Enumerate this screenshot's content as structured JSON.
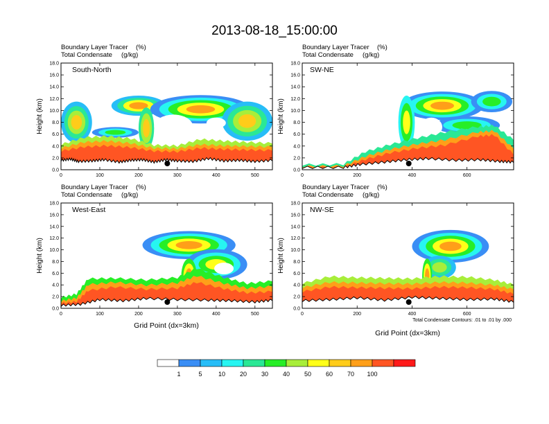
{
  "page_title": "2013-08-18_15:00:00",
  "colors": {
    "levels": [
      "#ffffff",
      "#3a8ef5",
      "#27bdf7",
      "#27f5f1",
      "#2ae895",
      "#27ee27",
      "#a8ee3a",
      "#ffff19",
      "#ffcc1a",
      "#ff9f19",
      "#ff5523",
      "#ff1a1a"
    ],
    "terrain": "#000000",
    "marker": "#000000"
  },
  "chart_data": [
    {
      "type": "heatmap",
      "panel": "South-North",
      "header_left": [
        "Boundary Layer Tracer",
        "Total Condensate"
      ],
      "header_units": [
        "(%)",
        "(g/kg)"
      ],
      "ylabel": "Height (km)",
      "xlabel": "",
      "x_ticks": [
        0,
        100,
        200,
        300,
        400,
        500
      ],
      "y_ticks": [
        "0.0",
        "2.0",
        "4.0",
        "6.0",
        "8.0",
        "10.0",
        "12.0",
        "14.0",
        "16.0",
        "18.0"
      ],
      "xlim": [
        0,
        545
      ],
      "ylim": [
        0,
        18
      ],
      "marker_x": 274,
      "terrain": [
        [
          0,
          1.5
        ],
        [
          25,
          1.7
        ],
        [
          45,
          1.3
        ],
        [
          80,
          1.4
        ],
        [
          110,
          1.6
        ],
        [
          150,
          1.2
        ],
        [
          180,
          1.5
        ],
        [
          210,
          1.6
        ],
        [
          240,
          1.2
        ],
        [
          270,
          1.6
        ],
        [
          300,
          1.4
        ],
        [
          340,
          1.3
        ],
        [
          380,
          1.8
        ],
        [
          420,
          1.4
        ],
        [
          460,
          1.5
        ],
        [
          500,
          1.3
        ],
        [
          545,
          1.5
        ]
      ],
      "bands": [
        {
          "x0": 0,
          "x1": 545,
          "top": [
            [
              0,
              4.2
            ],
            [
              60,
              5.4
            ],
            [
              120,
              5.6
            ],
            [
              180,
              5.2
            ],
            [
              240,
              4.1
            ],
            [
              300,
              4.0
            ],
            [
              360,
              5.1
            ],
            [
              420,
              4.8
            ],
            [
              480,
              4.6
            ],
            [
              545,
              4.4
            ]
          ],
          "level": 6
        },
        {
          "x0": 0,
          "x1": 545,
          "top": [
            [
              0,
              3.6
            ],
            [
              60,
              4.6
            ],
            [
              120,
              4.8
            ],
            [
              180,
              4.4
            ],
            [
              240,
              3.6
            ],
            [
              300,
              3.5
            ],
            [
              360,
              4.2
            ],
            [
              420,
              4.0
            ],
            [
              480,
              3.9
            ],
            [
              545,
              3.8
            ]
          ],
          "level": 9
        },
        {
          "x0": 0,
          "x1": 545,
          "top": [
            [
              0,
              3.1
            ],
            [
              60,
              3.8
            ],
            [
              120,
              4.0
            ],
            [
              180,
              3.7
            ],
            [
              240,
              3.1
            ],
            [
              300,
              3.0
            ],
            [
              360,
              3.6
            ],
            [
              420,
              3.4
            ],
            [
              480,
              3.3
            ],
            [
              545,
              3.2
            ]
          ],
          "level": 10
        }
      ],
      "clouds": [
        {
          "cx": 40,
          "cy": 8.0,
          "rx": 40,
          "ry": 3.5,
          "levels": [
            2,
            4,
            6,
            8
          ]
        },
        {
          "cx": 200,
          "cy": 10.8,
          "rx": 70,
          "ry": 1.7,
          "levels": [
            2,
            4,
            7,
            9
          ]
        },
        {
          "cx": 360,
          "cy": 10.2,
          "rx": 130,
          "ry": 2.4,
          "levels": [
            1,
            3,
            5,
            7,
            9
          ]
        },
        {
          "cx": 480,
          "cy": 8.2,
          "rx": 65,
          "ry": 3.3,
          "levels": [
            2,
            4,
            6,
            8
          ]
        },
        {
          "cx": 220,
          "cy": 7.0,
          "rx": 20,
          "ry": 3.5,
          "levels": [
            4,
            6,
            8
          ]
        },
        {
          "cx": 140,
          "cy": 6.3,
          "rx": 60,
          "ry": 0.9,
          "levels": [
            1,
            3,
            5
          ]
        }
      ],
      "holes": [
        {
          "cx": 290,
          "cy": 7.3,
          "rx": 50,
          "ry": 2.0
        },
        {
          "cx": 400,
          "cy": 7.9,
          "rx": 25,
          "ry": 0.9
        }
      ]
    },
    {
      "type": "heatmap",
      "panel": "SW-NE",
      "header_left": [
        "Boundary Layer Tracer",
        "Total Condensate"
      ],
      "header_units": [
        "(%)",
        "(g/kg)"
      ],
      "ylabel": "Height (km)",
      "xlabel": "",
      "x_ticks": [
        0,
        200,
        400,
        600
      ],
      "y_ticks": [
        "0.0",
        "2.0",
        "4.0",
        "6.0",
        "8.0",
        "10.0",
        "12.0",
        "14.0",
        "16.0",
        "18.0"
      ],
      "xlim": [
        0,
        770
      ],
      "ylim": [
        0,
        18
      ],
      "marker_x": 388,
      "terrain": [
        [
          0,
          0.3
        ],
        [
          150,
          0.3
        ],
        [
          210,
          0.8
        ],
        [
          300,
          1.2
        ],
        [
          380,
          1.6
        ],
        [
          460,
          1.8
        ],
        [
          560,
          1.5
        ],
        [
          650,
          1.6
        ],
        [
          720,
          1.3
        ],
        [
          770,
          1.2
        ]
      ],
      "bands": [
        {
          "x0": 0,
          "x1": 770,
          "top": [
            [
              0,
              0.8
            ],
            [
              150,
              0.9
            ],
            [
              230,
              3.0
            ],
            [
              320,
              4.2
            ],
            [
              420,
              5.3
            ],
            [
              520,
              6.3
            ],
            [
              640,
              7.2
            ],
            [
              700,
              7.4
            ],
            [
              770,
              5.0
            ]
          ],
          "level": 4
        },
        {
          "x0": 0,
          "x1": 770,
          "top": [
            [
              0,
              0.5
            ],
            [
              150,
              0.6
            ],
            [
              230,
              2.2
            ],
            [
              320,
              3.4
            ],
            [
              420,
              4.3
            ],
            [
              520,
              5.0
            ],
            [
              640,
              6.3
            ],
            [
              700,
              6.5
            ],
            [
              770,
              3.5
            ]
          ],
          "level": 9
        },
        {
          "x0": 0,
          "x1": 770,
          "top": [
            [
              0,
              0.3
            ],
            [
              150,
              0.3
            ],
            [
              230,
              1.7
            ],
            [
              320,
              2.8
            ],
            [
              420,
              3.6
            ],
            [
              520,
              4.1
            ],
            [
              640,
              5.6
            ],
            [
              700,
              5.8
            ],
            [
              770,
              2.5
            ]
          ],
          "level": 10
        }
      ],
      "clouds": [
        {
          "cx": 510,
          "cy": 10.8,
          "rx": 150,
          "ry": 2.4,
          "levels": [
            1,
            3,
            5,
            7,
            9
          ]
        },
        {
          "cx": 690,
          "cy": 11.5,
          "rx": 75,
          "ry": 1.8,
          "levels": [
            1,
            3,
            5
          ]
        },
        {
          "cx": 380,
          "cy": 8.0,
          "rx": 30,
          "ry": 4.5,
          "levels": [
            3,
            5,
            7
          ]
        },
        {
          "cx": 600,
          "cy": 7.5,
          "rx": 120,
          "ry": 1.5,
          "levels": [
            1,
            3,
            5
          ]
        }
      ],
      "holes": [
        {
          "cx": 470,
          "cy": 7.2,
          "rx": 40,
          "ry": 1.6
        }
      ]
    },
    {
      "type": "heatmap",
      "panel": "West-East",
      "header_left": [
        "Boundary Layer Tracer",
        "Total Condensate"
      ],
      "header_units": [
        "(%)",
        "(g/kg)"
      ],
      "ylabel": "Height (km)",
      "xlabel": "Grid Point (dx=3km)",
      "x_ticks": [
        0,
        100,
        200,
        300,
        400,
        500
      ],
      "y_ticks": [
        "0.0",
        "2.0",
        "4.0",
        "6.0",
        "8.0",
        "10.0",
        "12.0",
        "14.0",
        "16.0",
        "18.0"
      ],
      "xlim": [
        0,
        545
      ],
      "ylim": [
        0,
        18
      ],
      "marker_x": 274,
      "terrain": [
        [
          0,
          0.4
        ],
        [
          50,
          0.6
        ],
        [
          100,
          1.4
        ],
        [
          160,
          1.2
        ],
        [
          220,
          1.6
        ],
        [
          300,
          1.4
        ],
        [
          380,
          1.3
        ],
        [
          440,
          1.2
        ],
        [
          500,
          1.0
        ],
        [
          545,
          1.3
        ]
      ],
      "bands": [
        {
          "x0": 0,
          "x1": 545,
          "top": [
            [
              0,
              1.8
            ],
            [
              40,
              2.4
            ],
            [
              70,
              5.0
            ],
            [
              140,
              5.1
            ],
            [
              220,
              4.8
            ],
            [
              300,
              5.2
            ],
            [
              350,
              6.8
            ],
            [
              420,
              5.2
            ],
            [
              480,
              4.2
            ],
            [
              545,
              4.6
            ]
          ],
          "level": 5
        },
        {
          "x0": 0,
          "x1": 545,
          "top": [
            [
              0,
              1.2
            ],
            [
              40,
              1.7
            ],
            [
              70,
              4.0
            ],
            [
              140,
              4.4
            ],
            [
              220,
              3.9
            ],
            [
              300,
              4.3
            ],
            [
              350,
              5.5
            ],
            [
              420,
              4.2
            ],
            [
              480,
              3.4
            ],
            [
              545,
              3.7
            ]
          ],
          "level": 9
        },
        {
          "x0": 0,
          "x1": 545,
          "top": [
            [
              0,
              0.8
            ],
            [
              40,
              1.1
            ],
            [
              70,
              3.0
            ],
            [
              140,
              3.6
            ],
            [
              220,
              3.2
            ],
            [
              300,
              3.4
            ],
            [
              350,
              4.4
            ],
            [
              420,
              3.3
            ],
            [
              480,
              2.6
            ],
            [
              545,
              2.8
            ]
          ],
          "level": 10
        }
      ],
      "clouds": [
        {
          "cx": 330,
          "cy": 10.8,
          "rx": 120,
          "ry": 2.4,
          "levels": [
            1,
            3,
            5,
            7,
            9
          ]
        },
        {
          "cx": 400,
          "cy": 7.5,
          "rx": 80,
          "ry": 2.6,
          "levels": [
            1,
            3,
            5,
            7
          ]
        },
        {
          "cx": 330,
          "cy": 5.5,
          "rx": 20,
          "ry": 3.0,
          "levels": [
            5,
            7,
            9
          ]
        }
      ],
      "holes": [
        {
          "cx": 420,
          "cy": 6.8,
          "rx": 25,
          "ry": 1.0
        }
      ]
    },
    {
      "type": "heatmap",
      "panel": "NW-SE",
      "header_left": [
        "Boundary Layer Tracer",
        "Total Condensate"
      ],
      "header_units": [
        "(%)",
        "(g/kg)"
      ],
      "ylabel": "Height (km)",
      "xlabel": "Grid Point (dx=3km)",
      "x_ticks": [
        0,
        200,
        400,
        600
      ],
      "y_ticks": [
        "0.0",
        "2.0",
        "4.0",
        "6.0",
        "8.0",
        "10.0",
        "12.0",
        "14.0",
        "16.0",
        "18.0"
      ],
      "xlim": [
        0,
        770
      ],
      "ylim": [
        0,
        18
      ],
      "marker_x": 388,
      "terrain": [
        [
          0,
          1.2
        ],
        [
          100,
          1.4
        ],
        [
          200,
          1.7
        ],
        [
          300,
          1.3
        ],
        [
          400,
          1.8
        ],
        [
          500,
          1.6
        ],
        [
          600,
          1.4
        ],
        [
          700,
          1.5
        ],
        [
          770,
          1.0
        ]
      ],
      "bands": [
        {
          "x0": 0,
          "x1": 770,
          "top": [
            [
              0,
              4.2
            ],
            [
              100,
              5.4
            ],
            [
              200,
              5.2
            ],
            [
              300,
              5.1
            ],
            [
              400,
              5.0
            ],
            [
              500,
              5.4
            ],
            [
              600,
              5.3
            ],
            [
              700,
              4.8
            ],
            [
              770,
              4.0
            ]
          ],
          "level": 6
        },
        {
          "x0": 0,
          "x1": 770,
          "top": [
            [
              0,
              3.5
            ],
            [
              100,
              4.4
            ],
            [
              200,
              4.3
            ],
            [
              300,
              4.2
            ],
            [
              400,
              4.1
            ],
            [
              500,
              4.4
            ],
            [
              600,
              4.3
            ],
            [
              700,
              3.9
            ],
            [
              770,
              3.2
            ]
          ],
          "level": 9
        },
        {
          "x0": 0,
          "x1": 770,
          "top": [
            [
              0,
              2.8
            ],
            [
              100,
              3.6
            ],
            [
              200,
              3.5
            ],
            [
              300,
              3.4
            ],
            [
              400,
              3.3
            ],
            [
              500,
              3.6
            ],
            [
              600,
              3.5
            ],
            [
              700,
              3.2
            ],
            [
              770,
              2.4
            ]
          ],
          "level": 10
        }
      ],
      "clouds": [
        {
          "cx": 540,
          "cy": 10.6,
          "rx": 140,
          "ry": 2.8,
          "levels": [
            1,
            3,
            5,
            7,
            9
          ]
        },
        {
          "cx": 500,
          "cy": 7.0,
          "rx": 60,
          "ry": 2.0,
          "levels": [
            2,
            4,
            6
          ]
        },
        {
          "cx": 455,
          "cy": 5.5,
          "rx": 18,
          "ry": 3.0,
          "levels": [
            5,
            7,
            9
          ]
        }
      ],
      "holes": [],
      "footnote": "Total Condensate Contours: .01 to .01 by .000"
    }
  ],
  "colorbar": {
    "labels": [
      "1",
      "5",
      "10",
      "20",
      "30",
      "40",
      "50",
      "60",
      "70",
      "100"
    ]
  }
}
